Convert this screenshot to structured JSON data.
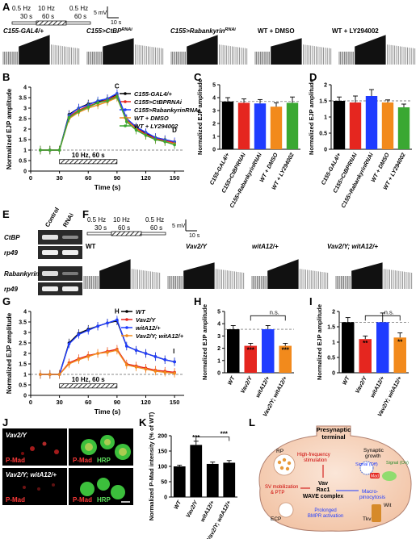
{
  "panels": {
    "A": {
      "label": "A",
      "protocol": [
        {
          "freq": "0.5 Hz",
          "dur": "30 s"
        },
        {
          "freq": "10 Hz",
          "dur": "60 s"
        },
        {
          "freq": "0.5 Hz",
          "dur": "60 s"
        }
      ],
      "scale_v": "5 mV",
      "scale_t": "10 s",
      "conditions": [
        "C155-GAL4/+",
        "C155>CtBP",
        "C155>Rabankyrin",
        "WT + DMSO",
        "WT + LY294002"
      ],
      "condition_sup": [
        "",
        "RNAi",
        "RNAi",
        "",
        ""
      ]
    },
    "B": {
      "label": "B",
      "marker_c": "C",
      "marker_d": "D",
      "stim_label": "10 Hz, 60 s"
    },
    "C": {
      "label": "C"
    },
    "D": {
      "label": "D"
    },
    "E": {
      "label": "E",
      "cols": [
        "Control",
        "RNAi"
      ],
      "rows": [
        "CtBP",
        "rp49",
        "Rabankyrin",
        "rp49"
      ]
    },
    "F": {
      "label": "F",
      "protocol": [
        {
          "freq": "0.5 Hz",
          "dur": "30 s"
        },
        {
          "freq": "10 Hz",
          "dur": "60 s"
        },
        {
          "freq": "0.5 Hz",
          "dur": "60 s"
        }
      ],
      "scale_v": "5 mV",
      "scale_t": "10 s",
      "conditions": [
        "WT",
        "Vav2/Y",
        "witA12/+",
        "Vav2/Y; witA12/+"
      ]
    },
    "G": {
      "label": "G",
      "marker_h": "H",
      "marker_i": "I",
      "stim_label": "10 Hz, 60 s"
    },
    "H": {
      "label": "H",
      "ns": "n.s."
    },
    "I": {
      "label": "I",
      "ns": "n.s."
    },
    "J": {
      "label": "J",
      "rows": [
        "Vav2/Y",
        "Vav2/Y; witA12/+"
      ],
      "stain_pmad": "P-Mad",
      "stain_hrp": "HRP"
    },
    "K": {
      "label": "K"
    },
    "L": {
      "label": "L",
      "title_1": "Presynaptic",
      "title_2": "terminal",
      "synaptic_1": "Synaptic",
      "synaptic_2": "growth",
      "rp": "RP",
      "hf_1": "High-frequency",
      "hf_2": "stimulation",
      "sv_1": "SV mobilization",
      "sv_2": "& PTP",
      "vav": "Vav",
      "rac1": "Rac1",
      "wave": "WAVE complex",
      "signal_off": "Signal (Off)",
      "signal_on": "Signal (On)",
      "mad": "Mad",
      "macro_1": "Macro-",
      "macro_2": "pinocytosis",
      "ecp": "ECP",
      "prolonged_1": "Prolonged",
      "prolonged_2": "BMPR activation",
      "wit": "Wit",
      "tkv": "Tkv"
    }
  },
  "chart_data": [
    {
      "id": "B",
      "type": "line",
      "xlabel": "Time (s)",
      "ylabel": "Normalized EJP amplitude",
      "xlim": [
        0,
        160
      ],
      "ylim": [
        0,
        4
      ],
      "xticks": [
        0,
        30,
        60,
        90,
        120,
        150
      ],
      "yticks": [
        0,
        0.5,
        1,
        1.5,
        2,
        2.5,
        3,
        3.5,
        4
      ],
      "series": [
        {
          "name": "C155-GAL4/+",
          "color": "#000000",
          "x": [
            10,
            20,
            30,
            40,
            50,
            60,
            70,
            80,
            90,
            100,
            110,
            120,
            130,
            140,
            150
          ],
          "y": [
            1.0,
            1.0,
            1.0,
            2.7,
            3.0,
            3.2,
            3.3,
            3.45,
            3.65,
            2.5,
            2.1,
            1.8,
            1.6,
            1.5,
            1.35
          ]
        },
        {
          "name": "C155>CtBPRNAi",
          "color": "#e5261f",
          "x": [
            10,
            20,
            30,
            40,
            50,
            60,
            70,
            80,
            90,
            100,
            110,
            120,
            130,
            140,
            150
          ],
          "y": [
            1.0,
            1.0,
            1.0,
            2.6,
            2.9,
            3.1,
            3.25,
            3.4,
            3.6,
            2.45,
            2.05,
            1.75,
            1.55,
            1.45,
            1.35
          ]
        },
        {
          "name": "C155>RabankyrinRNAi",
          "color": "#1f3cff",
          "x": [
            10,
            20,
            30,
            40,
            50,
            60,
            70,
            80,
            90,
            100,
            110,
            120,
            130,
            140,
            150
          ],
          "y": [
            1.0,
            1.0,
            1.0,
            2.65,
            3.0,
            3.15,
            3.35,
            3.45,
            3.7,
            2.5,
            2.1,
            1.85,
            1.6,
            1.5,
            1.4
          ]
        },
        {
          "name": "WT + DMSO",
          "color": "#f28a1c",
          "x": [
            10,
            20,
            30,
            40,
            50,
            60,
            70,
            80,
            90,
            100,
            110,
            120,
            130,
            140,
            150
          ],
          "y": [
            1.0,
            1.0,
            1.0,
            2.5,
            2.8,
            3.0,
            3.15,
            3.3,
            3.5,
            2.4,
            2.0,
            1.7,
            1.5,
            1.4,
            1.3
          ]
        },
        {
          "name": "WT + LY294002",
          "color": "#3aa832",
          "x": [
            10,
            20,
            30,
            40,
            50,
            60,
            70,
            80,
            90,
            100,
            110,
            120,
            130,
            140,
            150
          ],
          "y": [
            1.0,
            1.0,
            1.0,
            2.55,
            2.85,
            3.05,
            3.25,
            3.35,
            3.55,
            2.35,
            1.95,
            1.7,
            1.5,
            1.4,
            1.25
          ]
        }
      ]
    },
    {
      "id": "C",
      "type": "bar",
      "ylabel": "Normalized EJP amplitude",
      "ylim": [
        0,
        5
      ],
      "yticks": [
        0,
        1,
        2,
        3,
        4,
        5
      ],
      "categories": [
        "C155-GAL4/+",
        "C155>CtBPRNAi",
        "C155>RabankyrinRNAi",
        "WT + DMSO",
        "WT + LY294002"
      ],
      "values": [
        3.7,
        3.6,
        3.55,
        3.3,
        3.6
      ],
      "errors": [
        0.3,
        0.3,
        0.3,
        0.3,
        0.45
      ],
      "colors": [
        "#000000",
        "#e5261f",
        "#1f3cff",
        "#f28a1c",
        "#3aa832"
      ],
      "refline": 3.7
    },
    {
      "id": "D",
      "type": "bar",
      "ylabel": "Normalized EJP amplitude",
      "ylim": [
        0,
        2.0
      ],
      "yticks": [
        0,
        0.5,
        1.0,
        1.5,
        2.0
      ],
      "categories": [
        "C155-GAL4/+",
        "C155>CtBPRNAi",
        "C155>RabankyrinRNAi",
        "WT + DMSO",
        "WT + LY294002"
      ],
      "values": [
        1.5,
        1.45,
        1.65,
        1.45,
        1.3
      ],
      "errors": [
        0.12,
        0.2,
        0.2,
        0.08,
        0.1
      ],
      "colors": [
        "#000000",
        "#e5261f",
        "#1f3cff",
        "#f28a1c",
        "#3aa832"
      ],
      "refline": 1.5
    },
    {
      "id": "G",
      "type": "line",
      "xlabel": "Time (s)",
      "ylabel": "Normalized EJP amplitude",
      "xlim": [
        0,
        160
      ],
      "ylim": [
        0,
        4
      ],
      "xticks": [
        0,
        30,
        60,
        90,
        120,
        150
      ],
      "yticks": [
        0,
        0.5,
        1,
        1.5,
        2,
        2.5,
        3,
        3.5,
        4
      ],
      "series": [
        {
          "name": "WT",
          "color": "#000000",
          "x": [
            10,
            20,
            30,
            40,
            50,
            60,
            70,
            80,
            90,
            100,
            110,
            120,
            130,
            140,
            150
          ],
          "y": [
            1.0,
            1.0,
            1.0,
            2.5,
            2.95,
            3.15,
            3.3,
            3.45,
            3.55,
            2.35,
            2.15,
            2.0,
            1.85,
            1.7,
            1.6
          ]
        },
        {
          "name": "Vav2/Y",
          "color": "#e5261f",
          "x": [
            10,
            20,
            30,
            40,
            50,
            60,
            70,
            80,
            90,
            100,
            110,
            120,
            130,
            140,
            150
          ],
          "y": [
            1.0,
            1.0,
            1.0,
            1.55,
            1.75,
            1.9,
            2.0,
            2.1,
            2.2,
            1.5,
            1.4,
            1.3,
            1.2,
            1.15,
            1.1
          ]
        },
        {
          "name": "witA12/+",
          "color": "#1f3cff",
          "x": [
            10,
            20,
            30,
            40,
            50,
            60,
            70,
            80,
            90,
            100,
            110,
            120,
            130,
            140,
            150
          ],
          "y": [
            1.0,
            1.0,
            1.0,
            2.45,
            2.9,
            3.1,
            3.3,
            3.45,
            3.6,
            2.35,
            2.15,
            2.0,
            1.85,
            1.7,
            1.6
          ]
        },
        {
          "name": "Vav2/Y; witA12/+",
          "color": "#f28a1c",
          "x": [
            10,
            20,
            30,
            40,
            50,
            60,
            70,
            80,
            90,
            100,
            110,
            120,
            130,
            140,
            150
          ],
          "y": [
            1.0,
            1.0,
            1.0,
            1.5,
            1.7,
            1.85,
            2.0,
            2.05,
            2.15,
            1.45,
            1.35,
            1.25,
            1.15,
            1.1,
            1.05
          ]
        }
      ]
    },
    {
      "id": "H",
      "type": "bar",
      "ylabel": "Normalized EJP amplitude",
      "ylim": [
        0,
        5
      ],
      "yticks": [
        0,
        1,
        2,
        3,
        4,
        5
      ],
      "categories": [
        "WT",
        "Vav2/Y",
        "witA12/+",
        "Vav2/Y; witA12/+"
      ],
      "values": [
        3.55,
        2.2,
        3.55,
        2.2
      ],
      "errors": [
        0.3,
        0.2,
        0.3,
        0.2
      ],
      "colors": [
        "#000000",
        "#e5261f",
        "#1f3cff",
        "#f28a1c"
      ],
      "sig": [
        "",
        "***",
        "",
        "***"
      ],
      "refline": 3.55
    },
    {
      "id": "I",
      "type": "bar",
      "ylabel": "Normalized EJP amplitude",
      "ylim": [
        0,
        2.0
      ],
      "yticks": [
        0,
        0.5,
        1.0,
        1.5,
        2.0
      ],
      "categories": [
        "WT",
        "Vav2/Y",
        "witA12/+",
        "Vav2/Y; witA12/+"
      ],
      "values": [
        1.65,
        1.1,
        1.65,
        1.15
      ],
      "errors": [
        0.15,
        0.1,
        0.3,
        0.15
      ],
      "colors": [
        "#000000",
        "#e5261f",
        "#1f3cff",
        "#f28a1c"
      ],
      "sig": [
        "",
        "**",
        "",
        "**"
      ],
      "refline": 1.65
    },
    {
      "id": "K",
      "type": "bar",
      "ylabel": "Normalized P-Mad intensity (% of WT)",
      "ylim": [
        0,
        200
      ],
      "yticks": [
        0,
        50,
        100,
        150,
        200
      ],
      "categories": [
        "WT",
        "Vav2/Y",
        "witA12/+",
        "Vav2/Y; witA12/+"
      ],
      "values": [
        100,
        170,
        108,
        112
      ],
      "errors": [
        4,
        12,
        6,
        7
      ],
      "colors": [
        "#000000",
        "#000000",
        "#000000",
        "#000000"
      ],
      "sig": [
        "",
        "***",
        "",
        ""
      ],
      "bracket_sig": "***"
    }
  ]
}
